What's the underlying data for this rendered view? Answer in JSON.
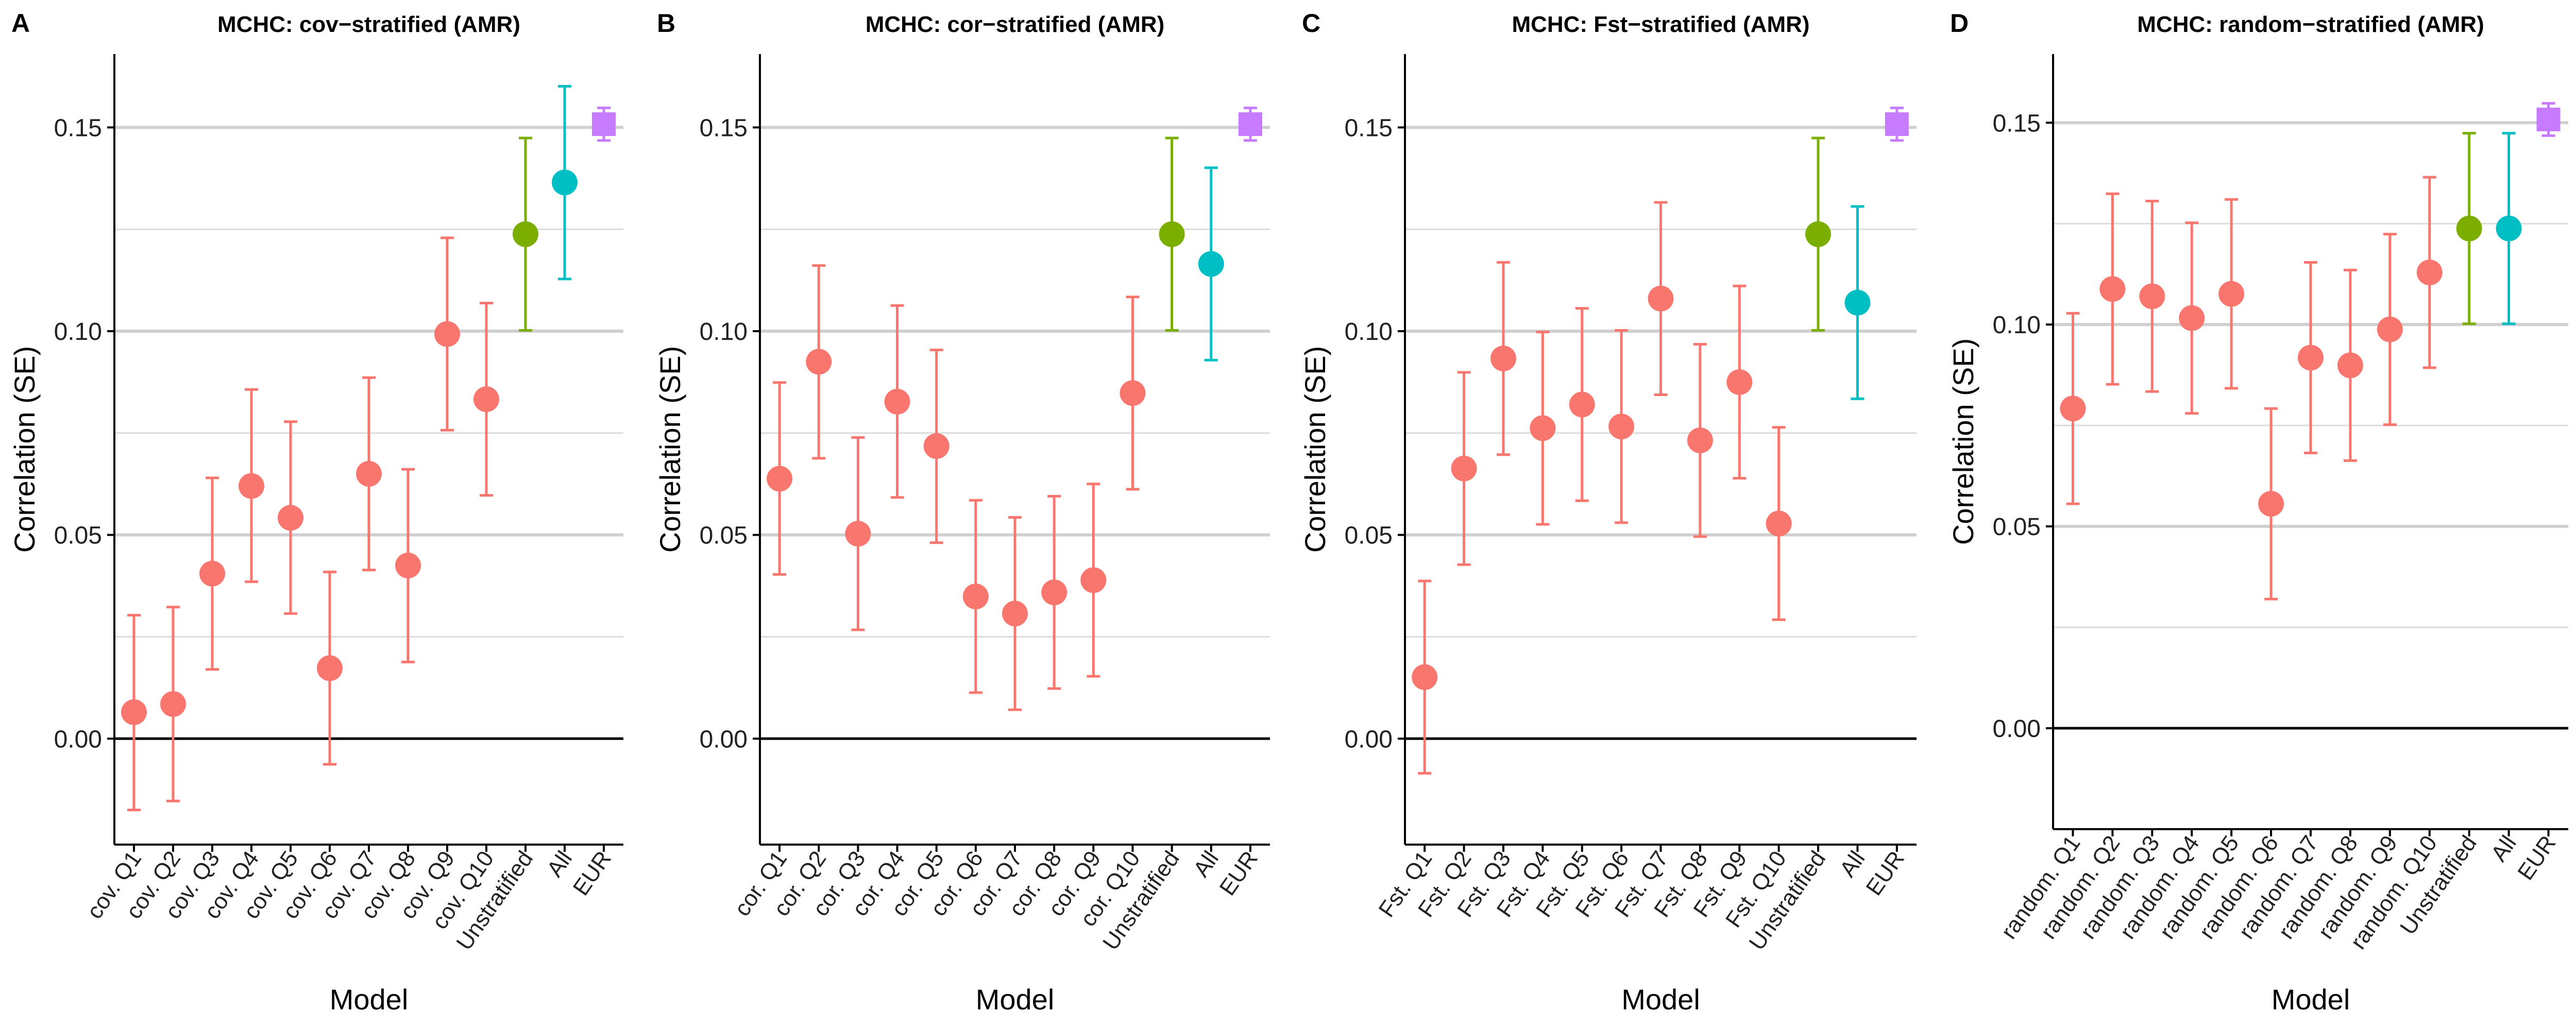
{
  "figure": {
    "ylabel": "Correlation (SE)",
    "xlabel": "Model"
  },
  "colors": {
    "stratified": "#F8766D",
    "unstratified": "#7CAE00",
    "all": "#00BFC4",
    "eur": "#C77CFF",
    "grid": "#dcdcdc",
    "axis": "#000000"
  },
  "chart_data": [
    {
      "type": "scatter",
      "panel_tag": "A",
      "title": "MCHC: cov−stratified (AMR)",
      "xlabel": "Model",
      "ylabel": "Correlation (SE)",
      "ylim": [
        -0.026,
        0.168
      ],
      "yticks": [
        "0.00",
        "0.05",
        "0.10",
        "0.15"
      ],
      "grid": "horizontal",
      "categories": [
        "cov. Q1",
        "cov. Q2",
        "cov. Q3",
        "cov. Q4",
        "cov. Q5",
        "cov. Q6",
        "cov. Q7",
        "cov. Q8",
        "cov. Q9",
        "cov. Q10",
        "Unstratified",
        "All",
        "EUR"
      ],
      "values": [
        0.0065,
        0.0085,
        0.0405,
        0.062,
        0.0542,
        0.0173,
        0.065,
        0.0425,
        0.0993,
        0.0833,
        0.1238,
        0.1365,
        0.1508
      ],
      "lower": [
        -0.0175,
        -0.0153,
        0.017,
        0.0385,
        0.0307,
        -0.0063,
        0.0414,
        0.0188,
        0.0757,
        0.0597,
        0.1002,
        0.1128,
        0.1468
      ],
      "upper": [
        0.0303,
        0.0323,
        0.064,
        0.0857,
        0.0778,
        0.0409,
        0.0886,
        0.0661,
        0.1229,
        0.1069,
        0.1474,
        0.1601,
        0.1548
      ]
    },
    {
      "type": "scatter",
      "panel_tag": "B",
      "title": "MCHC: cor−stratified (AMR)",
      "xlabel": "Model",
      "ylabel": "Correlation (SE)",
      "ylim": [
        -0.026,
        0.168
      ],
      "yticks": [
        "0.00",
        "0.05",
        "0.10",
        "0.15"
      ],
      "grid": "horizontal",
      "categories": [
        "cor. Q1",
        "cor. Q2",
        "cor. Q3",
        "cor. Q4",
        "cor. Q5",
        "cor. Q6",
        "cor. Q7",
        "cor. Q8",
        "cor. Q9",
        "cor. Q10",
        "Unstratified",
        "All",
        "EUR"
      ],
      "values": [
        0.0638,
        0.0925,
        0.0503,
        0.0827,
        0.0718,
        0.0349,
        0.0307,
        0.0359,
        0.0389,
        0.0848,
        0.1238,
        0.1165,
        0.1508
      ],
      "lower": [
        0.0403,
        0.0688,
        0.0267,
        0.0592,
        0.0481,
        0.0113,
        0.0071,
        0.0123,
        0.0153,
        0.0612,
        0.1002,
        0.0929,
        0.1468
      ],
      "upper": [
        0.0874,
        0.1161,
        0.0739,
        0.1063,
        0.0954,
        0.0585,
        0.0543,
        0.0595,
        0.0625,
        0.1084,
        0.1474,
        0.1401,
        0.1548
      ]
    },
    {
      "type": "scatter",
      "panel_tag": "C",
      "title": "MCHC: Fst−stratified (AMR)",
      "xlabel": "Model",
      "ylabel": "Correlation (SE)",
      "ylim": [
        -0.026,
        0.168
      ],
      "yticks": [
        "0.00",
        "0.05",
        "0.10",
        "0.15"
      ],
      "grid": "horizontal",
      "categories": [
        "Fst. Q1",
        "Fst. Q2",
        "Fst. Q3",
        "Fst. Q4",
        "Fst. Q5",
        "Fst. Q6",
        "Fst. Q7",
        "Fst. Q8",
        "Fst. Q9",
        "Fst. Q10",
        "Unstratified",
        "All",
        "EUR"
      ],
      "values": [
        0.0151,
        0.0663,
        0.0933,
        0.0762,
        0.082,
        0.0766,
        0.108,
        0.0732,
        0.0875,
        0.0528,
        0.1238,
        0.107,
        0.1508
      ],
      "lower": [
        -0.0085,
        0.0427,
        0.0697,
        0.0526,
        0.0584,
        0.053,
        0.0844,
        0.0496,
        0.0639,
        0.0292,
        0.1002,
        0.0834,
        0.1468
      ],
      "upper": [
        0.0387,
        0.0899,
        0.1169,
        0.0998,
        0.1056,
        0.1002,
        0.1316,
        0.0968,
        0.1111,
        0.0764,
        0.1474,
        0.1306,
        0.1548
      ]
    },
    {
      "type": "scatter",
      "panel_tag": "D",
      "title": "MCHC: random−stratified (AMR)",
      "xlabel": "Model",
      "ylabel": "Correlation (SE)",
      "ylim": [
        -0.025,
        0.167
      ],
      "yticks": [
        "0.00",
        "0.05",
        "0.10",
        "0.15"
      ],
      "grid": "horizontal",
      "categories": [
        "random. Q1",
        "random. Q2",
        "random. Q3",
        "random. Q4",
        "random. Q5",
        "random. Q6",
        "random. Q7",
        "random. Q8",
        "random. Q9",
        "random. Q10",
        "Unstratified",
        "All",
        "EUR"
      ],
      "values": [
        0.0792,
        0.1088,
        0.107,
        0.1016,
        0.1076,
        0.0556,
        0.0918,
        0.0899,
        0.0988,
        0.1129,
        0.1238,
        0.1238,
        0.1508
      ],
      "lower": [
        0.0556,
        0.0852,
        0.0834,
        0.078,
        0.0842,
        0.032,
        0.0682,
        0.0663,
        0.0752,
        0.0893,
        0.1002,
        0.1002,
        0.1468
      ],
      "upper": [
        0.1028,
        0.1324,
        0.1306,
        0.1252,
        0.131,
        0.0792,
        0.1154,
        0.1135,
        0.1224,
        0.1365,
        0.1474,
        0.1474,
        0.1548
      ]
    }
  ]
}
